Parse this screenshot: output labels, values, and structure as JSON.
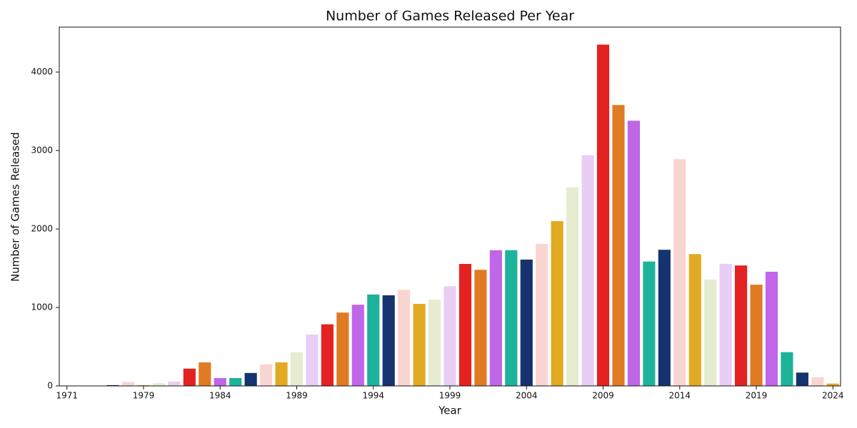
{
  "chart_data": {
    "type": "bar",
    "title": "Number of Games Released Per Year",
    "x_label": "Year",
    "y_label": "Number of Games Released",
    "categories": [
      "1971",
      null,
      null,
      null,
      null,
      "1979",
      null,
      null,
      null,
      null,
      "1984",
      null,
      null,
      null,
      null,
      "1989",
      null,
      null,
      null,
      null,
      "1994",
      null,
      null,
      null,
      null,
      "1999",
      null,
      null,
      null,
      null,
      "2004",
      null,
      null,
      null,
      null,
      "2009",
      null,
      null,
      null,
      null,
      "2014",
      null,
      null,
      null,
      null,
      "2019",
      null,
      null,
      null,
      null,
      "2024"
    ],
    "values": [
      0,
      0,
      0,
      10,
      50,
      10,
      35,
      55,
      220,
      300,
      100,
      100,
      165,
      275,
      300,
      430,
      655,
      785,
      935,
      1035,
      1165,
      1155,
      1225,
      1045,
      1100,
      1270,
      1555,
      1480,
      1730,
      1730,
      1610,
      1810,
      2100,
      2530,
      2940,
      4350,
      3580,
      3380,
      1585,
      1735,
      2890,
      1680,
      1355,
      1555,
      1535,
      1290,
      1455,
      430,
      170,
      110,
      30
    ],
    "colors": [
      "#e07b24",
      "#c066e8",
      "#1db39b",
      "#15346f",
      "#f9d5d1",
      "#e2aa22",
      "#e5ecd0",
      "#e8cdf5",
      "#e32221",
      "#e07b24",
      "#c066e8",
      "#1db39b",
      "#15346f",
      "#f9d5d1",
      "#e2aa22",
      "#e5ecd0",
      "#e8cdf5",
      "#e32221",
      "#e07b24",
      "#c066e8",
      "#1db39b",
      "#15346f",
      "#f9d5d1",
      "#e2aa22",
      "#e5ecd0",
      "#e8cdf5",
      "#e32221",
      "#e07b24",
      "#c066e8",
      "#1db39b",
      "#15346f",
      "#f9d5d1",
      "#e2aa22",
      "#e5ecd0",
      "#e8cdf5",
      "#e32221",
      "#e07b24",
      "#c066e8",
      "#1db39b",
      "#15346f",
      "#f9d5d1",
      "#e2aa22",
      "#e5ecd0",
      "#e8cdf5",
      "#e32221",
      "#e07b24",
      "#c066e8",
      "#1db39b",
      "#15346f",
      "#f9d5d1",
      "#e2aa22"
    ],
    "ylim": [
      0,
      4573
    ],
    "yticks": [
      0,
      1000,
      2000,
      3000,
      4000
    ],
    "grid": false
  }
}
